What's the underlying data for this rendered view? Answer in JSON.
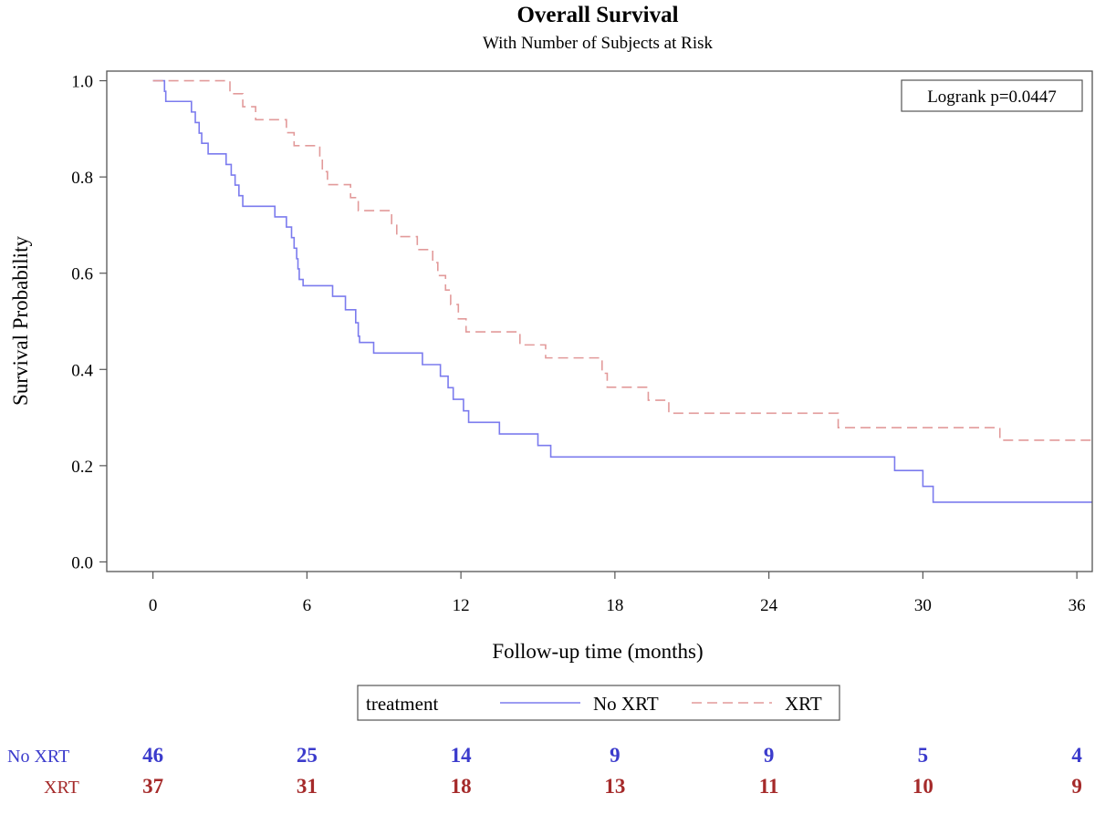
{
  "chart_data": {
    "type": "line",
    "title": "Overall Survival",
    "subtitle": "With Number of Subjects at Risk",
    "xlabel": "Follow-up time (months)",
    "ylabel": "Survival Probability",
    "xlim": [
      -1.8,
      36.6
    ],
    "ylim": [
      -0.02,
      1.02
    ],
    "x_ticks": [
      0,
      6,
      12,
      18,
      24,
      30,
      36
    ],
    "x_tick_labels": [
      "0",
      "6",
      "12",
      "18",
      "24",
      "30",
      "36"
    ],
    "y_ticks": [
      0.0,
      0.2,
      0.4,
      0.6,
      0.8,
      1.0
    ],
    "y_tick_labels": [
      "0.0",
      "0.2",
      "0.4",
      "0.6",
      "0.8",
      "1.0"
    ],
    "grid": false,
    "annotation": "Logrank p=0.0447",
    "legend": {
      "title": "treatment",
      "placement": "bottom",
      "entries": [
        "No XRT",
        "XRT"
      ]
    },
    "series": [
      {
        "name": "No XRT",
        "color": "#7b7bee",
        "line_style": "solid",
        "steps": [
          [
            0,
            1.0
          ],
          [
            0.45,
            0.978
          ],
          [
            0.5,
            0.957
          ],
          [
            1.5,
            0.935
          ],
          [
            1.65,
            0.913
          ],
          [
            1.8,
            0.891
          ],
          [
            1.9,
            0.87
          ],
          [
            2.15,
            0.848
          ],
          [
            2.85,
            0.826
          ],
          [
            3.05,
            0.804
          ],
          [
            3.2,
            0.783
          ],
          [
            3.35,
            0.761
          ],
          [
            3.5,
            0.739
          ],
          [
            4.75,
            0.717
          ],
          [
            5.2,
            0.696
          ],
          [
            5.4,
            0.674
          ],
          [
            5.5,
            0.652
          ],
          [
            5.6,
            0.63
          ],
          [
            5.65,
            0.609
          ],
          [
            5.7,
            0.587
          ],
          [
            5.85,
            0.574
          ],
          [
            7.0,
            0.552
          ],
          [
            7.5,
            0.524
          ],
          [
            7.9,
            0.497
          ],
          [
            8.0,
            0.469
          ],
          [
            8.05,
            0.456
          ],
          [
            8.6,
            0.434
          ],
          [
            10.5,
            0.41
          ],
          [
            11.2,
            0.386
          ],
          [
            11.5,
            0.362
          ],
          [
            11.7,
            0.338
          ],
          [
            12.1,
            0.314
          ],
          [
            12.3,
            0.29
          ],
          [
            13.5,
            0.266
          ],
          [
            15.0,
            0.242
          ],
          [
            15.5,
            0.218
          ],
          [
            28.9,
            0.19
          ],
          [
            30.0,
            0.157
          ],
          [
            30.4,
            0.124
          ],
          [
            36.6,
            0.124
          ]
        ]
      },
      {
        "name": "XRT",
        "color": "#e29a9a",
        "line_style": "dashed",
        "steps": [
          [
            0,
            1.0
          ],
          [
            3.0,
            0.973
          ],
          [
            3.5,
            0.946
          ],
          [
            4.0,
            0.919
          ],
          [
            5.2,
            0.892
          ],
          [
            5.5,
            0.865
          ],
          [
            6.5,
            0.838
          ],
          [
            6.6,
            0.811
          ],
          [
            6.8,
            0.784
          ],
          [
            7.7,
            0.757
          ],
          [
            8.0,
            0.73
          ],
          [
            9.3,
            0.703
          ],
          [
            9.5,
            0.676
          ],
          [
            10.3,
            0.649
          ],
          [
            10.9,
            0.622
          ],
          [
            11.1,
            0.595
          ],
          [
            11.4,
            0.565
          ],
          [
            11.6,
            0.535
          ],
          [
            11.9,
            0.505
          ],
          [
            12.2,
            0.478
          ],
          [
            14.3,
            0.451
          ],
          [
            15.3,
            0.424
          ],
          [
            17.5,
            0.392
          ],
          [
            17.7,
            0.363
          ],
          [
            19.3,
            0.336
          ],
          [
            20.1,
            0.309
          ],
          [
            26.7,
            0.279
          ],
          [
            33.0,
            0.253
          ],
          [
            36.6,
            0.253
          ]
        ]
      }
    ],
    "at_risk": {
      "times": [
        0,
        6,
        12,
        18,
        24,
        30,
        36
      ],
      "rows": [
        {
          "label": "No XRT",
          "color": "#3b3bcc",
          "values": [
            46,
            25,
            14,
            9,
            9,
            5,
            4
          ]
        },
        {
          "label": "XRT",
          "color": "#a52a2a",
          "values": [
            37,
            31,
            18,
            13,
            11,
            10,
            9
          ]
        }
      ]
    }
  }
}
